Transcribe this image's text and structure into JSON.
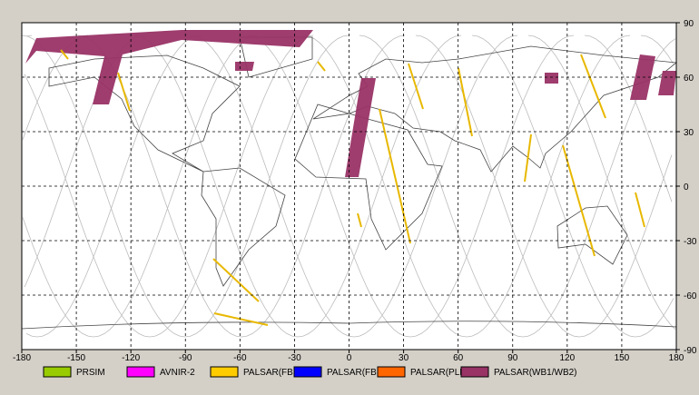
{
  "chart_data": {
    "type": "map",
    "xlim": [
      -180,
      180
    ],
    "ylim": [
      -90,
      90
    ],
    "xticks": [
      -180,
      -150,
      -120,
      -90,
      -60,
      -30,
      0,
      30,
      60,
      90,
      120,
      150,
      180
    ],
    "yticks": [
      -90,
      -60,
      -30,
      0,
      30,
      60,
      90
    ],
    "grid": true,
    "legend": [
      {
        "name": "PRSIM",
        "color": "#99cc00"
      },
      {
        "name": "AVNIR-2",
        "color": "#ff00ff"
      },
      {
        "name": "PALSAR(FBS)",
        "color": "#ffcc00"
      },
      {
        "name": "PALSAR(FBD)",
        "color": "#0000ff"
      },
      {
        "name": "PALSAR(PLR)",
        "color": "#ff6600"
      },
      {
        "name": "PALSAR(WB1/WB2)",
        "color": "#993366"
      }
    ]
  }
}
